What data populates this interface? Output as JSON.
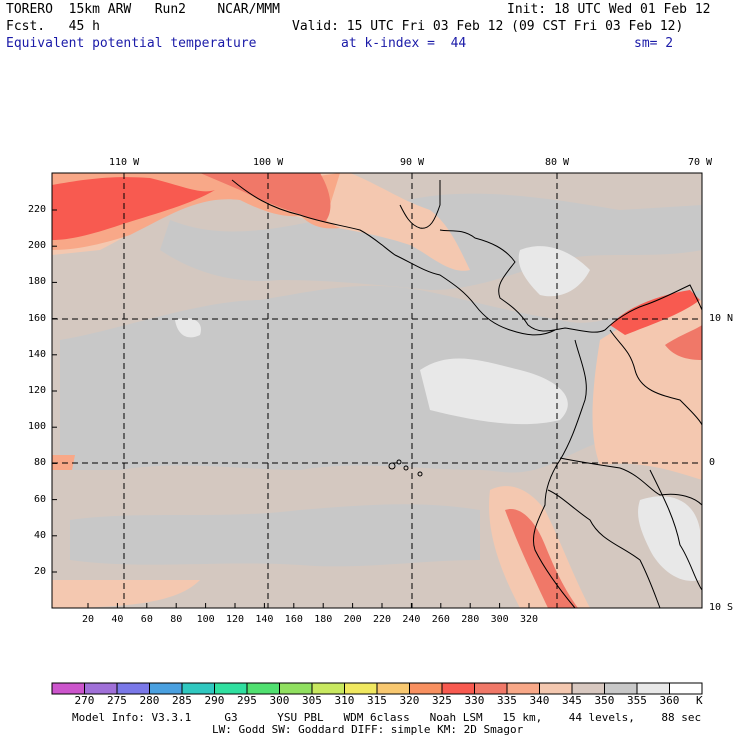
{
  "header": {
    "model": "TORERO  15km ARW   Run2    NCAR/MMM",
    "init": "Init: 18 UTC Wed 01 Feb 12",
    "fcst": "Fcst.   45 h",
    "valid": "Valid: 15 UTC Fri 03 Feb 12 (09 CST Fri 03 Feb 12)",
    "field": "Equivalent potential temperature",
    "level": "at k-index =  44",
    "smooth": "sm= 2"
  },
  "map": {
    "y_ticks": [
      "20",
      "40",
      "60",
      "80",
      "100",
      "120",
      "140",
      "160",
      "180",
      "200",
      "220"
    ],
    "x_ticks": [
      "20",
      "40",
      "60",
      "80",
      "100",
      "120",
      "140",
      "160",
      "180",
      "200",
      "220",
      "240",
      "260",
      "280",
      "300",
      "320"
    ],
    "lon_labels": [
      "110 W",
      "100 W",
      "90 W",
      "80 W",
      "70 W"
    ],
    "lat_labels": [
      "10 N",
      "0",
      "10 S"
    ]
  },
  "colorbar": {
    "values": [
      "270",
      "275",
      "280",
      "285",
      "290",
      "295",
      "300",
      "305",
      "310",
      "315",
      "320",
      "325",
      "330",
      "335",
      "340",
      "345",
      "350",
      "355",
      "360"
    ],
    "unit": "K",
    "colors": [
      "#cc55cc",
      "#a070d8",
      "#7a78e8",
      "#4aa0e0",
      "#30c8c0",
      "#30e0a0",
      "#50e070",
      "#90e060",
      "#c8e860",
      "#f0e860",
      "#f8c870",
      "#f89060",
      "#f85a50",
      "#f07868",
      "#f8a888",
      "#f4c8b0",
      "#d8c8c0",
      "#c8c8c8",
      "#e8e8e8",
      "#ffffff"
    ]
  },
  "footer": {
    "line1": "Model Info: V3.3.1     G3      YSU PBL   WDM 6class   Noah LSM   15 km,    44 levels,    88 sec",
    "line2": "LW: Godd SW: Goddard DIFF: simple KM: 2D Smagor"
  }
}
